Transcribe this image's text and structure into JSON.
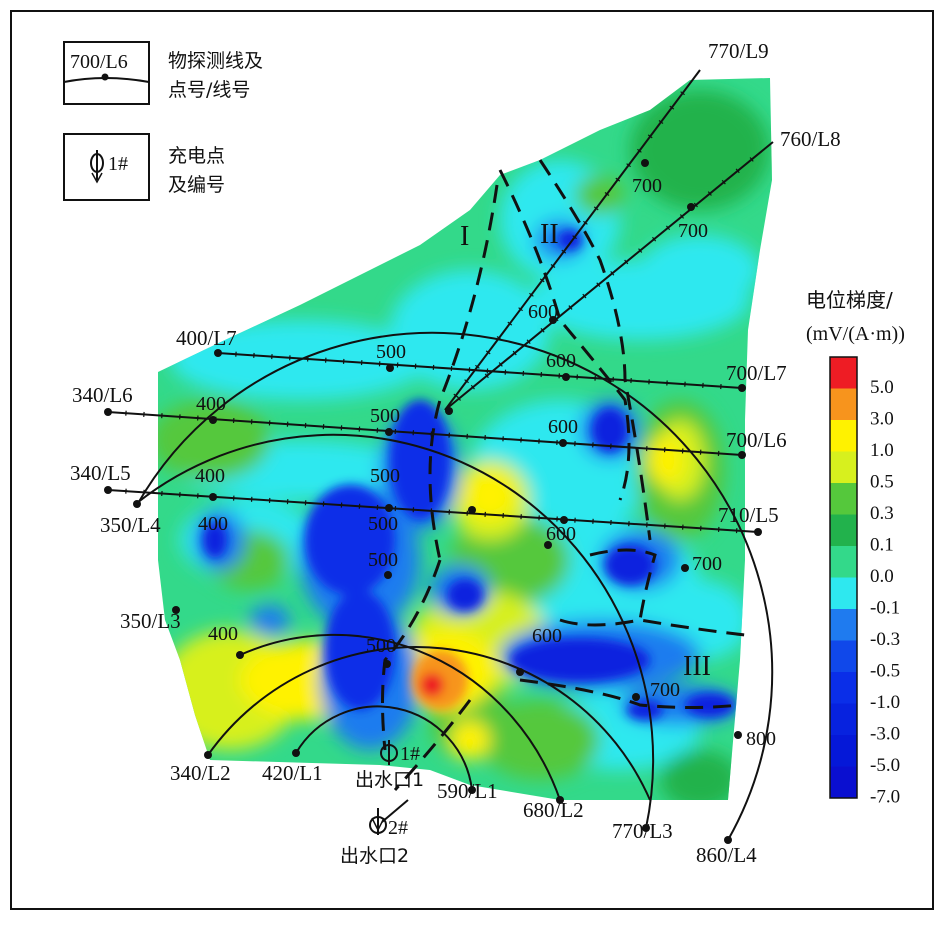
{
  "legend": {
    "line_label": "700/L6",
    "line_desc": [
      "物探测线及",
      "点号/线号"
    ],
    "charge_label": "1#",
    "charge_desc": [
      "充电点",
      "及编号"
    ]
  },
  "colorbar": {
    "title": [
      "电位梯度/",
      "(mV/(A·m))"
    ],
    "levels": [
      {
        "label": "5.0",
        "color": "#ee1c24"
      },
      {
        "label": "3.0",
        "color": "#f7941d"
      },
      {
        "label": "1.0",
        "color": "#fff200"
      },
      {
        "label": "0.5",
        "color": "#d7f01e"
      },
      {
        "label": "0.3",
        "color": "#55c83c"
      },
      {
        "label": "0.1",
        "color": "#22b24c"
      },
      {
        "label": "0.0",
        "color": "#33d98a"
      },
      {
        "label": "-0.1",
        "color": "#2ee8ef"
      },
      {
        "label": "-0.3",
        "color": "#1f7bef"
      },
      {
        "label": "-0.5",
        "color": "#1048ea"
      },
      {
        "label": "-1.0",
        "color": "#0a2ee8"
      },
      {
        "label": "-3.0",
        "color": "#0722df"
      },
      {
        "label": "-5.0",
        "color": "#0518d8"
      },
      {
        "label": "-7.0",
        "color": "#0a0fd0"
      }
    ]
  },
  "zones": [
    "I",
    "II",
    "III"
  ],
  "line_labels": {
    "L9": "770/L9",
    "L8": "760/L8",
    "L7_start": "400/L7",
    "L7_end": "700/L7",
    "L6_start": "340/L6",
    "L6_end": "700/L6",
    "L5_start": "340/L5",
    "L5_end": "710/L5",
    "L4_start": "350/L4",
    "L4_end": "860/L4",
    "L3_start": "350/L3",
    "L3_end": "770/L3",
    "L2_start": "340/L2",
    "L2_end": "680/L2",
    "L1_start": "420/L1",
    "L1_end": "590/L1"
  },
  "station_labels": [
    "700",
    "700",
    "600",
    "500",
    "600",
    "400",
    "500",
    "600",
    "400",
    "500",
    "500",
    "600",
    "400",
    "500",
    "700",
    "400",
    "500",
    "600",
    "700",
    "800"
  ],
  "points": {
    "p1": "1#",
    "p2": "2#",
    "outlet1": "出水口1",
    "outlet2": "出水口2"
  }
}
